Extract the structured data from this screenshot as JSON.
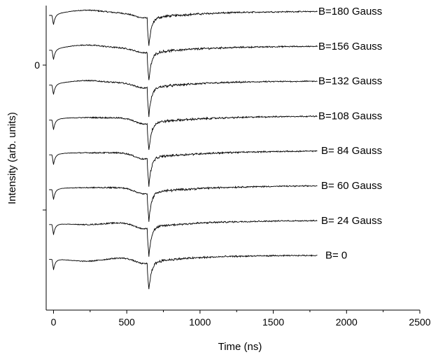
{
  "chart_data": {
    "type": "line",
    "title": "",
    "xlabel": "Time (ns)",
    "ylabel": "Intensity (arb. units)",
    "xlim": [
      -50,
      2500
    ],
    "x_ticks": [
      0,
      500,
      1000,
      1500,
      2000,
      2500
    ],
    "y_tick_labels": [
      {
        "label": "0"
      },
      {
        "label": ""
      }
    ],
    "line_color": "#000000",
    "series": [
      {
        "name": "B=180 Gauss",
        "offset": 0,
        "hump": 0.45,
        "recovery": 0.55
      },
      {
        "name": "B=156 Gauss",
        "offset": -1,
        "hump": 0.45,
        "recovery": 0.55
      },
      {
        "name": "B=132 Gauss",
        "offset": -2,
        "hump": 0.35,
        "recovery": 0.55
      },
      {
        "name": "B=108 Gauss",
        "offset": -3,
        "hump": 0.05,
        "recovery": 0.7
      },
      {
        "name": "B= 84 Gauss",
        "offset": -4,
        "hump": 0.0,
        "recovery": 0.7
      },
      {
        "name": "B= 60 Gauss",
        "offset": -5,
        "hump": 0.0,
        "recovery": 0.65
      },
      {
        "name": "B= 24 Gauss",
        "offset": -6,
        "hump": -0.3,
        "recovery": 0.55
      },
      {
        "name": "B= 0",
        "offset": -7,
        "hump": -0.55,
        "recovery": 0.45
      }
    ]
  }
}
